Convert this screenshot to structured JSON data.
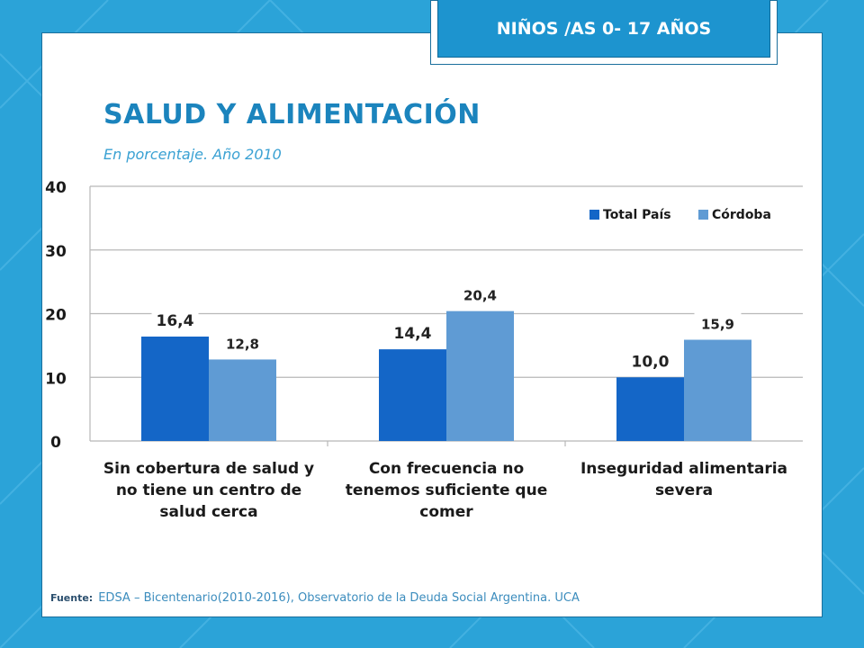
{
  "header": {
    "badge": "NIÑOS /AS 0- 17 AÑOS"
  },
  "title": "SALUD Y ALIMENTACIÓN",
  "subtitle": "En porcentaje. Año 2010",
  "source": {
    "label": "Fuente:",
    "text": "EDSA – Bicentenario(2010-2016), Observatorio de la Deuda Social Argentina. UCA"
  },
  "colors": {
    "background": "#2ba3d8",
    "series_1": "#1466c7",
    "series_2": "#5f9bd4",
    "title": "#1b84bd"
  },
  "chart_data": {
    "type": "bar",
    "categories": [
      [
        "Sin cobertura de salud y",
        "no tiene un centro de",
        "salud cerca"
      ],
      [
        "Con frecuencia no",
        "tenemos suficiente que",
        "comer"
      ],
      [
        "Inseguridad alimentaria",
        "severa"
      ]
    ],
    "series": [
      {
        "name": "Total País",
        "values": [
          16.4,
          14.4,
          10.0
        ],
        "labels": [
          "16,4",
          "14,4",
          "10,0"
        ],
        "color": "#1466c7"
      },
      {
        "name": "Córdoba",
        "values": [
          12.8,
          20.4,
          15.9
        ],
        "labels": [
          "12,8",
          "20,4",
          "15,9"
        ],
        "color": "#5f9bd4"
      }
    ],
    "ylim": [
      0,
      40
    ],
    "yticks": [
      "0",
      "10",
      "20",
      "30",
      "40"
    ],
    "grid": true,
    "legend": "top-right"
  }
}
